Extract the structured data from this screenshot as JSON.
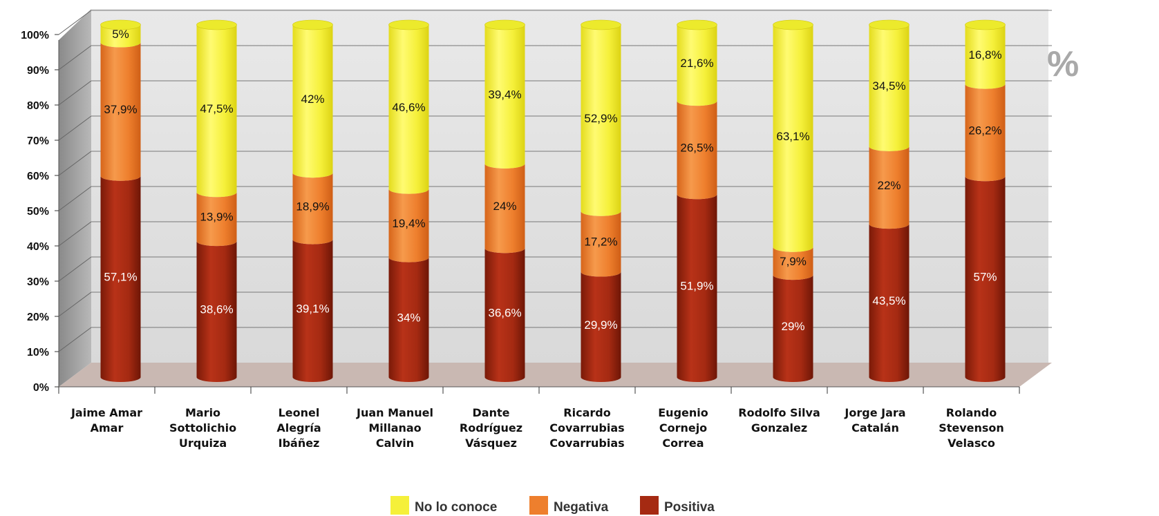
{
  "chart_data": {
    "type": "bar",
    "stacked": true,
    "title": "",
    "xlabel": "",
    "ylabel": "",
    "ylim": [
      0,
      100
    ],
    "yticks": [
      "0%",
      "10%",
      "20%",
      "30%",
      "40%",
      "50%",
      "60%",
      "70%",
      "80%",
      "90%",
      "100%"
    ],
    "grid": true,
    "legend": "bottom",
    "corner_symbol": "%",
    "categories": [
      [
        "Jaime Amar",
        "Amar"
      ],
      [
        "Mario",
        "Sottolichio",
        "Urquiza"
      ],
      [
        "Leonel",
        "Alegría",
        "Ibáñez"
      ],
      [
        "Juan Manuel",
        "Millanao",
        "Calvin"
      ],
      [
        "Dante",
        "Rodríguez",
        "Vásquez"
      ],
      [
        "Ricardo",
        "Covarrubias",
        "Covarrubias"
      ],
      [
        "Eugenio",
        "Cornejo",
        "Correa"
      ],
      [
        "Rodolfo Silva",
        "Gonzalez"
      ],
      [
        "Jorge Jara",
        "Catalán"
      ],
      [
        "Rolando",
        "Stevenson",
        "Velasco"
      ]
    ],
    "series": [
      {
        "name": "Positiva",
        "color": "#a52a12",
        "values": [
          57.1,
          38.6,
          39.1,
          34,
          36.6,
          29.9,
          51.9,
          29,
          43.5,
          57
        ],
        "labels": [
          "57,1%",
          "38,6%",
          "39,1%",
          "34%",
          "36,6%",
          "29,9%",
          "51,9%",
          "29%",
          "43,5%",
          "57%"
        ]
      },
      {
        "name": "Negativa",
        "color": "#ee7f2d",
        "values": [
          37.9,
          13.9,
          18.9,
          19.4,
          24,
          17.2,
          26.5,
          7.9,
          22,
          26.2
        ],
        "labels": [
          "37,9%",
          "13,9%",
          "18,9%",
          "19,4%",
          "24%",
          "17,2%",
          "26,5%",
          "7,9%",
          "22%",
          "26,2%"
        ]
      },
      {
        "name": "No lo conoce",
        "color": "#f5f03a",
        "values": [
          5,
          47.5,
          42,
          46.6,
          39.4,
          52.9,
          21.6,
          63.1,
          34.5,
          16.8
        ],
        "labels": [
          "5%",
          "47,5%",
          "42%",
          "46,6%",
          "39,4%",
          "52,9%",
          "21,6%",
          "63,1%",
          "34,5%",
          "16,8%"
        ]
      }
    ],
    "legend_order": [
      "No lo conoce",
      "Negativa",
      "Positiva"
    ]
  }
}
